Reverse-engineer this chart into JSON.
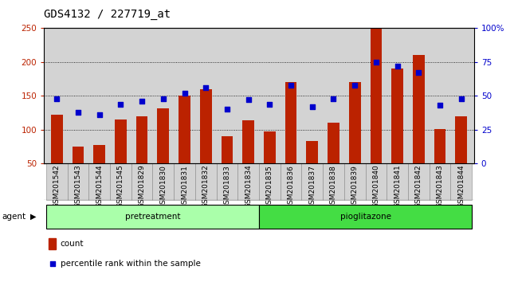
{
  "title": "GDS4132 / 227719_at",
  "samples": [
    "GSM201542",
    "GSM201543",
    "GSM201544",
    "GSM201545",
    "GSM201829",
    "GSM201830",
    "GSM201831",
    "GSM201832",
    "GSM201833",
    "GSM201834",
    "GSM201835",
    "GSM201836",
    "GSM201837",
    "GSM201838",
    "GSM201839",
    "GSM201840",
    "GSM201841",
    "GSM201842",
    "GSM201843",
    "GSM201844"
  ],
  "counts": [
    122,
    75,
    78,
    115,
    120,
    132,
    150,
    160,
    90,
    114,
    97,
    170,
    83,
    110,
    170,
    250,
    190,
    210,
    101,
    120
  ],
  "percentiles": [
    48,
    38,
    36,
    44,
    46,
    48,
    52,
    56,
    40,
    47,
    44,
    58,
    42,
    48,
    58,
    75,
    72,
    67,
    43,
    48
  ],
  "pretreatment_count": 10,
  "bar_color": "#bb2200",
  "dot_color": "#0000cc",
  "left_ylim": [
    50,
    250
  ],
  "left_yticks": [
    50,
    100,
    150,
    200,
    250
  ],
  "right_ylim": [
    0,
    100
  ],
  "right_yticks": [
    0,
    25,
    50,
    75,
    100
  ],
  "right_yticklabels": [
    "0",
    "25",
    "50",
    "75",
    "100%"
  ],
  "pretreatment_label": "pretreatment",
  "pioglitazone_label": "pioglitazone",
  "agent_label": "agent",
  "legend_count": "count",
  "legend_percentile": "percentile rank within the sample",
  "bg_color": "#d3d3d3",
  "pretreatment_bg": "#aaffaa",
  "pioglitazone_bg": "#44dd44",
  "title_fontsize": 10,
  "tick_fontsize": 6.5,
  "bar_width": 0.55
}
